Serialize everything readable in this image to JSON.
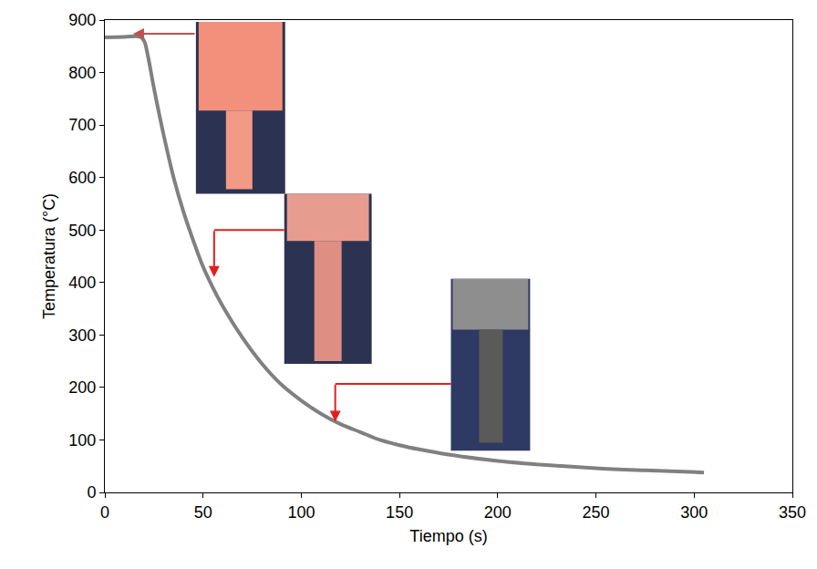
{
  "chart_data": {
    "type": "line",
    "x_label": "Tiempo (s)",
    "y_label": "Temperatura (°C)",
    "x": [
      0,
      10,
      18,
      20,
      22,
      25,
      30,
      35,
      40,
      45,
      50,
      55,
      60,
      70,
      80,
      90,
      100,
      110,
      120,
      130,
      140,
      150,
      160,
      175,
      200,
      225,
      250,
      275,
      305
    ],
    "values": [
      867,
      868,
      868,
      860,
      830,
      770,
      680,
      600,
      535,
      480,
      430,
      390,
      355,
      295,
      245,
      205,
      175,
      150,
      130,
      115,
      100,
      90,
      82,
      72,
      60,
      52,
      46,
      42,
      38
    ],
    "color": "#808080",
    "xlim": [
      0,
      350
    ],
    "xticks": [
      0,
      50,
      100,
      150,
      200,
      250,
      300,
      350
    ],
    "ylim": [
      0,
      900
    ],
    "yticks": [
      0,
      100,
      200,
      300,
      400,
      500,
      600,
      700,
      800,
      900
    ],
    "grid": false
  }
}
